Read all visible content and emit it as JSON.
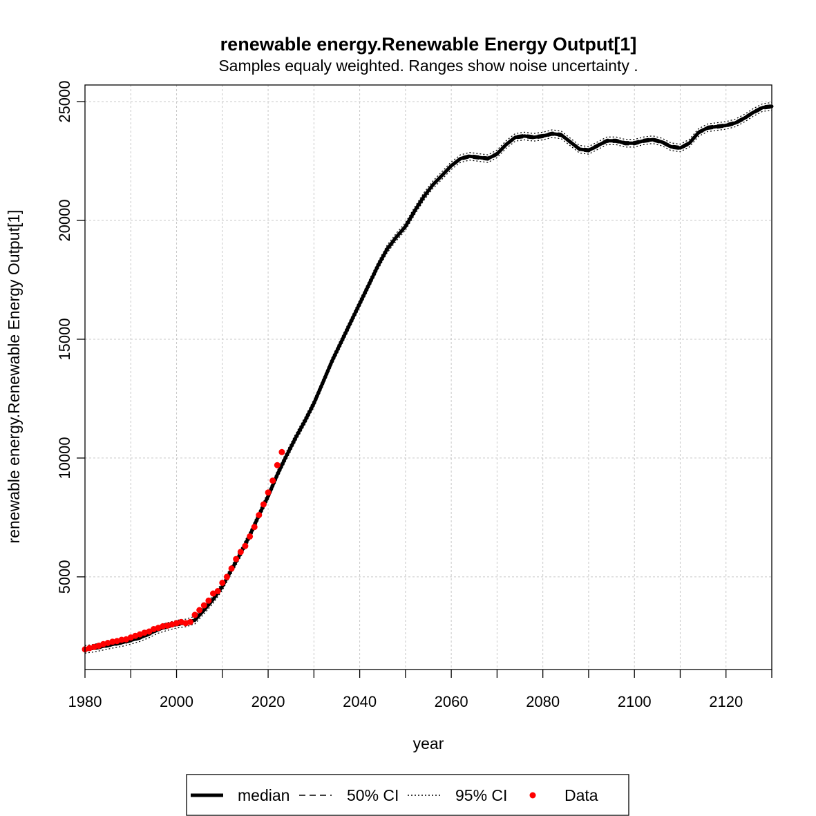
{
  "chart_data": {
    "type": "line",
    "title": "renewable energy.Renewable Energy Output[1]",
    "subtitle": "Samples equaly weighted. Ranges show  noise uncertainty .",
    "xlabel": "year",
    "ylabel": "renewable energy.Renewable Energy Output[1]",
    "xlim": [
      1980,
      2130
    ],
    "ylim": [
      1100,
      25700
    ],
    "x_ticks": [
      1980,
      2000,
      2020,
      2040,
      2060,
      2080,
      2100,
      2120
    ],
    "x_minor_ticks": [
      1990,
      2010,
      2030,
      2050,
      2070,
      2090,
      2110
    ],
    "y_ticks": [
      5000,
      10000,
      15000,
      20000,
      25000
    ],
    "grid": true,
    "legend_position": "bottom",
    "legend": [
      {
        "label": "median",
        "style": "solid-thick"
      },
      {
        "label": "50% CI",
        "style": "dashed"
      },
      {
        "label": "95% CI",
        "style": "dotted"
      },
      {
        "label": "Data",
        "style": "red-dot"
      }
    ],
    "colors": {
      "median": "#000000",
      "data": "#ff0000",
      "grid": "#c8c8c8"
    },
    "series": [
      {
        "name": "median",
        "x": [
          1980,
          1982,
          1984,
          1986,
          1988,
          1990,
          1992,
          1994,
          1996,
          1998,
          2000,
          2002,
          2004,
          2006,
          2008,
          2010,
          2012,
          2014,
          2016,
          2018,
          2020,
          2022,
          2024,
          2026,
          2028,
          2030,
          2032,
          2034,
          2036,
          2038,
          2040,
          2042,
          2044,
          2046,
          2048,
          2050,
          2052,
          2054,
          2056,
          2058,
          2060,
          2062,
          2064,
          2066,
          2068,
          2070,
          2072,
          2074,
          2076,
          2078,
          2080,
          2082,
          2084,
          2086,
          2088,
          2090,
          2092,
          2094,
          2096,
          2098,
          2100,
          2102,
          2104,
          2106,
          2108,
          2110,
          2112,
          2114,
          2116,
          2118,
          2120,
          2122,
          2124,
          2126,
          2128,
          2130
        ],
        "y": [
          1950,
          2000,
          2080,
          2160,
          2230,
          2330,
          2440,
          2600,
          2790,
          2910,
          3010,
          3060,
          3180,
          3600,
          4050,
          4600,
          5300,
          6000,
          6750,
          7600,
          8400,
          9300,
          10100,
          10850,
          11550,
          12300,
          13200,
          14100,
          14900,
          15700,
          16500,
          17300,
          18100,
          18800,
          19300,
          19750,
          20400,
          21000,
          21500,
          21900,
          22300,
          22600,
          22700,
          22650,
          22600,
          22800,
          23200,
          23500,
          23550,
          23500,
          23550,
          23650,
          23600,
          23300,
          23000,
          22950,
          23150,
          23350,
          23350,
          23250,
          23250,
          23350,
          23400,
          23300,
          23100,
          23050,
          23250,
          23700,
          23900,
          23950,
          24000,
          24100,
          24300,
          24550,
          24750,
          24800
        ]
      },
      {
        "name": "Data",
        "x": [
          1980,
          1981,
          1982,
          1983,
          1984,
          1985,
          1986,
          1987,
          1988,
          1989,
          1990,
          1991,
          1992,
          1993,
          1994,
          1995,
          1996,
          1997,
          1998,
          1999,
          2000,
          2001,
          2002,
          2003,
          2004,
          2005,
          2006,
          2007,
          2008,
          2009,
          2010,
          2011,
          2012,
          2013,
          2014,
          2015,
          2016,
          2017,
          2018,
          2019,
          2020,
          2021,
          2022,
          2023
        ],
        "y": [
          1950,
          2000,
          2050,
          2100,
          2170,
          2220,
          2270,
          2300,
          2350,
          2370,
          2450,
          2520,
          2580,
          2650,
          2700,
          2800,
          2850,
          2920,
          2950,
          3000,
          3050,
          3100,
          3050,
          3100,
          3400,
          3600,
          3800,
          4000,
          4300,
          4400,
          4750,
          5000,
          5350,
          5750,
          6050,
          6300,
          6700,
          7100,
          7600,
          8050,
          8550,
          9050,
          9700,
          10250
        ]
      }
    ]
  }
}
